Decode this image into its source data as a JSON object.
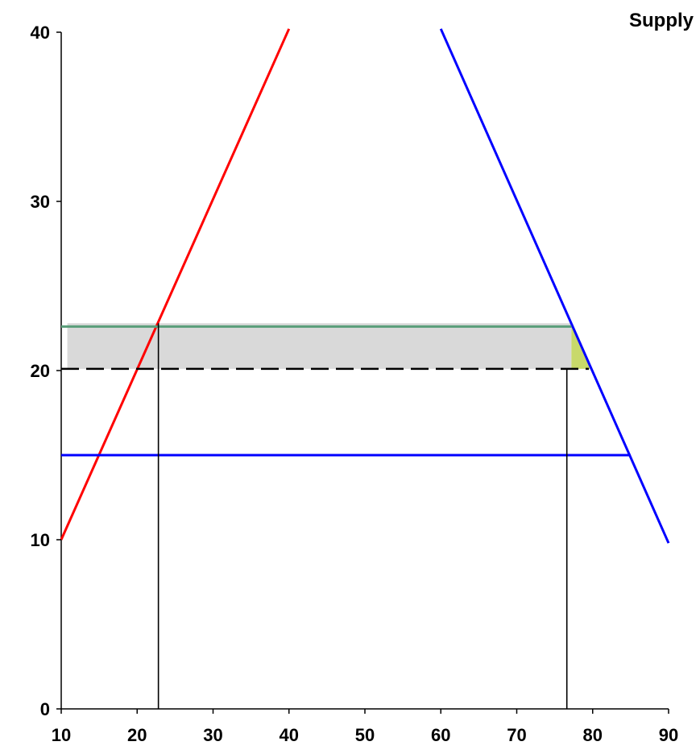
{
  "chart_data": {
    "type": "line",
    "title": "Supply",
    "xlim": [
      10,
      90
    ],
    "ylim": [
      0,
      40
    ],
    "x_ticks": [
      10,
      20,
      30,
      40,
      50,
      60,
      70,
      80,
      90
    ],
    "y_ticks": [
      0,
      10,
      20,
      30,
      40
    ],
    "grid": false,
    "series": [
      {
        "color": "#ff0000",
        "style": "solid",
        "points": [
          [
            10,
            10
          ],
          [
            40,
            40.2
          ]
        ]
      },
      {
        "color": "#0000ff",
        "style": "solid",
        "points": [
          [
            60,
            40.2
          ],
          [
            90,
            9.8
          ]
        ]
      },
      {
        "color": "#0000ff",
        "style": "solid",
        "points": [
          [
            10,
            15
          ],
          [
            85,
            15
          ]
        ]
      },
      {
        "color": "#5a9e7a",
        "style": "solid",
        "points": [
          [
            10,
            22.6
          ],
          [
            77.2,
            22.6
          ]
        ]
      },
      {
        "color": "#000000",
        "style": "dashed",
        "points": [
          [
            10,
            20.1
          ],
          [
            79.5,
            20.1
          ]
        ]
      },
      {
        "color": "#000000",
        "style": "solid",
        "points": [
          [
            22.8,
            0
          ],
          [
            22.8,
            22.8
          ]
        ]
      },
      {
        "color": "#000000",
        "style": "solid",
        "points": [
          [
            76.6,
            0
          ],
          [
            76.6,
            20.1
          ]
        ]
      }
    ],
    "shaded_regions": [
      {
        "color": "#d9d9d9",
        "polygon": [
          [
            10.8,
            22.8
          ],
          [
            77.2,
            22.8
          ],
          [
            77.2,
            20.1
          ],
          [
            10.8,
            20.1
          ]
        ]
      },
      {
        "color": "#c8d96a",
        "polygon": [
          [
            77.2,
            22.8
          ],
          [
            79.8,
            20.1
          ],
          [
            77.2,
            20.1
          ]
        ]
      }
    ]
  }
}
